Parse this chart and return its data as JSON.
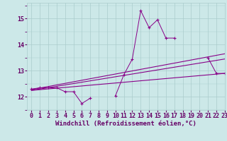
{
  "x": [
    0,
    1,
    2,
    3,
    4,
    5,
    6,
    7,
    8,
    9,
    10,
    11,
    12,
    13,
    14,
    15,
    16,
    17,
    18,
    19,
    20,
    21,
    22,
    23
  ],
  "y_main": [
    12.3,
    12.35,
    12.35,
    12.35,
    12.2,
    12.2,
    11.75,
    11.95,
    null,
    null,
    12.05,
    12.85,
    13.45,
    15.3,
    14.65,
    14.95,
    14.25,
    14.25,
    null,
    null,
    null,
    13.5,
    12.9,
    12.9
  ],
  "reg_lines": [
    {
      "x0": 0,
      "y0": 12.25,
      "x1": 23,
      "y1": 12.9
    },
    {
      "x0": 0,
      "y0": 12.25,
      "x1": 23,
      "y1": 13.45
    },
    {
      "x0": 0,
      "y0": 12.28,
      "x1": 23,
      "y1": 13.65
    }
  ],
  "xlabel": "Windchill (Refroidissement éolien,°C)",
  "xlim": [
    -0.5,
    23
  ],
  "ylim": [
    11.5,
    15.6
  ],
  "yticks": [
    12,
    13,
    14,
    15
  ],
  "xticks": [
    0,
    1,
    2,
    3,
    4,
    5,
    6,
    7,
    8,
    9,
    10,
    11,
    12,
    13,
    14,
    15,
    16,
    17,
    18,
    19,
    20,
    21,
    22,
    23
  ],
  "bg_color": "#cce8e8",
  "grid_color": "#aacccc",
  "line_color": "#880088",
  "font_color": "#660066",
  "tick_fontsize": 6.0,
  "xlabel_fontsize": 6.5
}
